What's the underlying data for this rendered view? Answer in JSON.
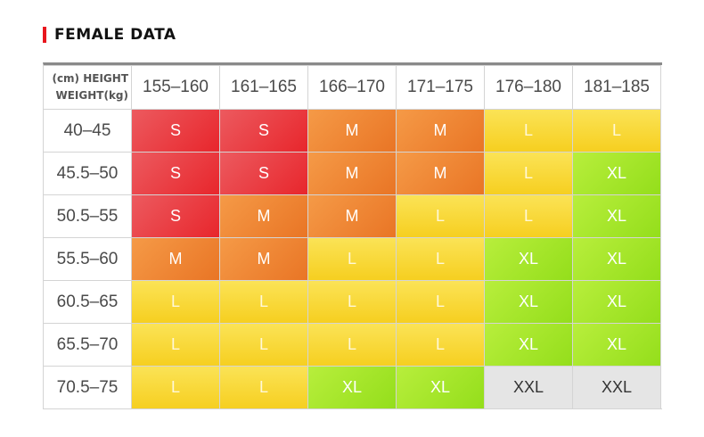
{
  "title": "FEMALE DATA",
  "header": {
    "corner_line1": "(cm) HEIGHT",
    "corner_line2": "WEIGHT(kg)",
    "heights": [
      "155–160",
      "161–165",
      "166–170",
      "171–175",
      "176–180",
      "181–185"
    ]
  },
  "rows": [
    {
      "weight": "40–45",
      "sizes": [
        "S",
        "S",
        "M",
        "M",
        "L",
        "L"
      ]
    },
    {
      "weight": "45.5–50",
      "sizes": [
        "S",
        "S",
        "M",
        "M",
        "L",
        "XL"
      ]
    },
    {
      "weight": "50.5–55",
      "sizes": [
        "S",
        "M",
        "M",
        "L",
        "L",
        "XL"
      ]
    },
    {
      "weight": "55.5–60",
      "sizes": [
        "M",
        "M",
        "L",
        "L",
        "XL",
        "XL"
      ]
    },
    {
      "weight": "60.5–65",
      "sizes": [
        "L",
        "L",
        "L",
        "L",
        "XL",
        "XL"
      ]
    },
    {
      "weight": "65.5–70",
      "sizes": [
        "L",
        "L",
        "L",
        "L",
        "XL",
        "XL"
      ]
    },
    {
      "weight": "70.5–75",
      "sizes": [
        "L",
        "L",
        "XL",
        "XL",
        "XXL",
        "XXL"
      ]
    }
  ],
  "colors": {
    "accent_bar": "#e8161e",
    "S": "#e8262c",
    "M": "#ec7d2c",
    "L": "#f8d93a",
    "XL": "#a6e52a",
    "XXL": "#e5e5e5"
  }
}
